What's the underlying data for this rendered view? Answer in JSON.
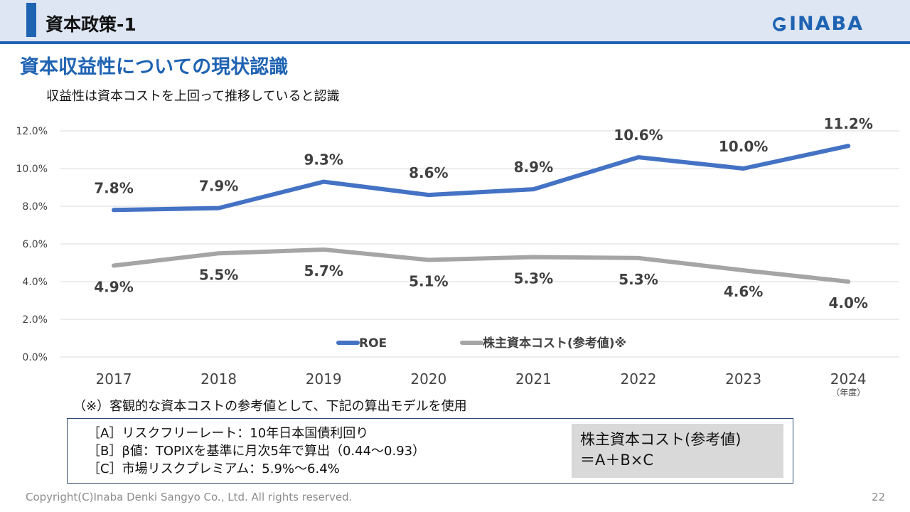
{
  "header": {
    "title": "資本政策-1",
    "logo_text": "INABA"
  },
  "subtitle": "資本収益性についての現状認識",
  "lead": "収益性は資本コストを上回って推移していると認識",
  "chart_data": {
    "type": "line",
    "x": [
      "2017",
      "2018",
      "2019",
      "2020",
      "2021",
      "2022",
      "2023",
      "2024"
    ],
    "x_unit_label": "（年度）",
    "y_ticks": [
      "0.0%",
      "2.0%",
      "4.0%",
      "6.0%",
      "8.0%",
      "10.0%",
      "12.0%"
    ],
    "ylim": [
      0,
      12
    ],
    "grid": true,
    "legend_placement": "bottom",
    "series": [
      {
        "name": "ROE",
        "color": "#4472c4",
        "values": [
          7.8,
          7.9,
          9.3,
          8.6,
          8.9,
          10.6,
          10.0,
          11.2
        ],
        "labels": [
          "7.8%",
          "7.9%",
          "9.3%",
          "8.6%",
          "8.9%",
          "10.6%",
          "10.0%",
          "11.2%"
        ],
        "label_position": "above"
      },
      {
        "name": "株主資本コスト(参考値)※",
        "color": "#a5a5a5",
        "values": [
          4.85,
          5.5,
          5.7,
          5.15,
          5.3,
          5.25,
          4.6,
          4.0
        ],
        "labels": [
          "4.9%",
          "5.5%",
          "5.7%",
          "5.1%",
          "5.3%",
          "5.3%",
          "4.6%",
          "4.0%"
        ],
        "label_position": "below"
      }
    ]
  },
  "footnote": "（※）客観的な資本コストの参考値として、下記の算出モデルを使用",
  "formula_box": {
    "lines": [
      "［A］リスクフリーレート：10年日本国債利回り",
      "［B］β値：TOPIXを基準に月次5年で算出（0.44～0.93）",
      "［C］市場リスクプレミアム：5.9%～6.4%"
    ],
    "result_line1": "株主資本コスト(参考値)",
    "result_line2": "＝A＋B×C"
  },
  "footer": {
    "copyright": "Copyright(C)Inaba Denki Sangyo Co., Ltd. All rights reserved.",
    "page_number": "22"
  },
  "colors": {
    "brand": "#1f63b3",
    "header_bg": "#dde6f2"
  }
}
